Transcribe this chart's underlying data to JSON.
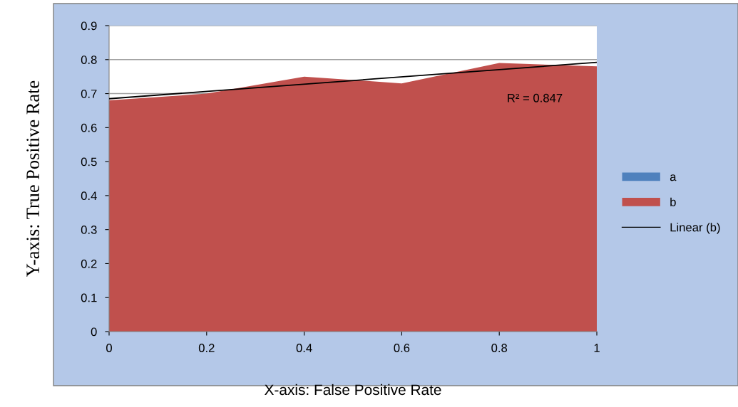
{
  "chart_data": {
    "type": "area",
    "xlabel": "X-axis: False Positive Rate",
    "ylabel": "Y-axis: True Positive Rate",
    "x": [
      0,
      0.2,
      0.4,
      0.6,
      0.8,
      1
    ],
    "series": [
      {
        "name": "a",
        "color": "#4f81bd",
        "values": [
          null,
          null,
          null,
          null,
          null,
          null
        ]
      },
      {
        "name": "b",
        "color": "#c0504d",
        "values": [
          0.68,
          0.7,
          0.75,
          0.73,
          0.79,
          0.78
        ]
      },
      {
        "name": "Linear (b)",
        "type": "line",
        "color": "#000000",
        "x": [
          0,
          1
        ],
        "values": [
          0.685,
          0.792
        ]
      }
    ],
    "annotations": [
      "R² = 0.847"
    ],
    "xlim": [
      0,
      1
    ],
    "xticks": [
      0,
      0.2,
      0.4,
      0.6,
      0.8,
      1
    ],
    "ylim": [
      0,
      0.9
    ],
    "yticks": [
      0,
      0.1,
      0.2,
      0.3,
      0.4,
      0.5,
      0.6,
      0.7,
      0.8,
      0.9
    ],
    "grid": "y",
    "legend": "right"
  }
}
